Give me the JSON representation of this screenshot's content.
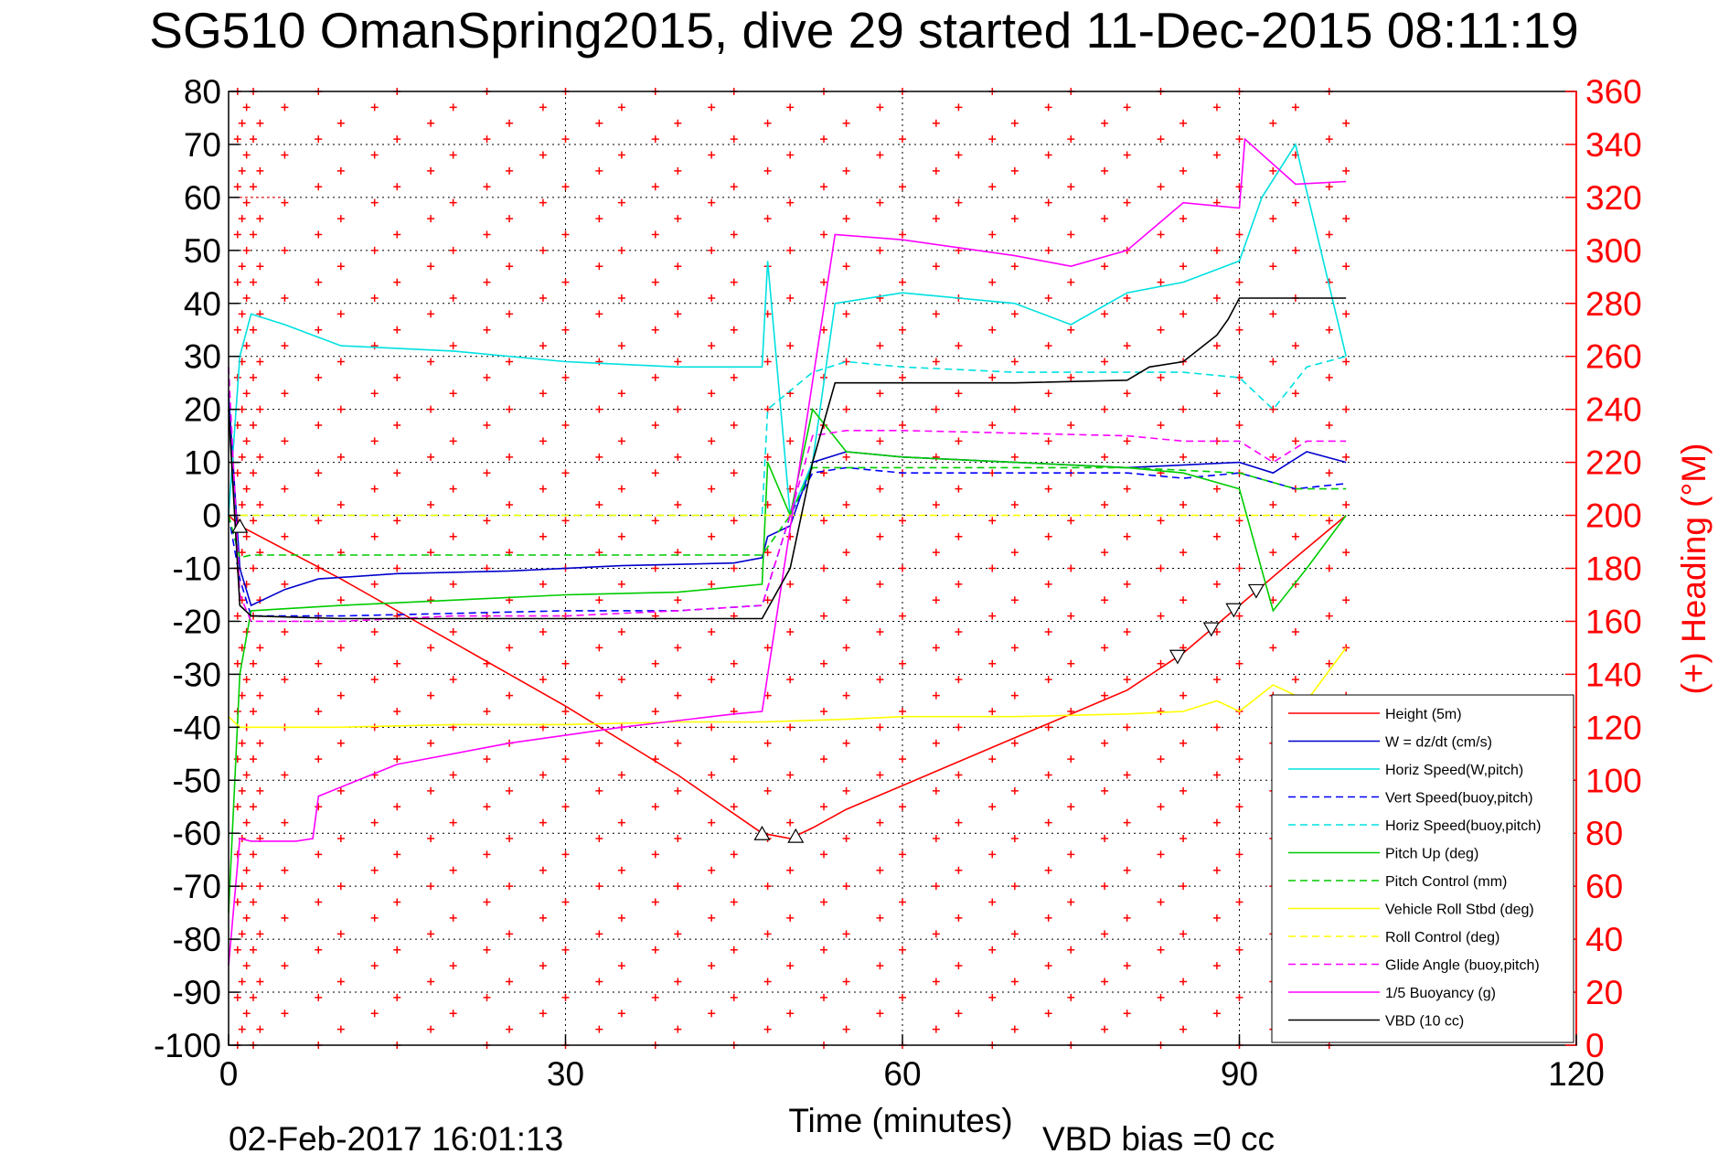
{
  "title": "SG510 OmanSpring2015, dive 29 started 11-Dec-2015 08:11:19",
  "footer": {
    "timestamp": "02-Feb-2017 16:01:13",
    "vbd_bias": "VBD bias =0 cc"
  },
  "colors": {
    "height": "#ff0000",
    "w": "#0000cc",
    "horiz_speed": "#00e0e0",
    "vert_speed_buoy": "#0000ff",
    "horiz_speed_buoy": "#00e0e0",
    "pitch_up": "#00cc00",
    "pitch_control": "#00cc00",
    "roll": "#ffff00",
    "roll_control": "#ffff00",
    "glide_angle": "#ff00ff",
    "buoyancy": "#ff00ff",
    "vbd": "#000000",
    "heading": "#ff0000"
  },
  "chart_data": {
    "type": "line",
    "xlabel": "Time (minutes)",
    "ylabel": "",
    "y2label": "(+) Heading (°M)",
    "xlim": [
      0,
      120
    ],
    "ylim": [
      -100,
      80
    ],
    "y2lim": [
      0,
      360
    ],
    "xticks": [
      "0",
      "30",
      "60",
      "90",
      "120"
    ],
    "yticks": [
      "80",
      "70",
      "60",
      "50",
      "40",
      "30",
      "20",
      "10",
      "0",
      "-10",
      "-20",
      "-30",
      "-40",
      "-50",
      "-60",
      "-70",
      "-80",
      "-90",
      "-100"
    ],
    "y2ticks": [
      "360",
      "340",
      "320",
      "300",
      "280",
      "260",
      "240",
      "220",
      "200",
      "180",
      "160",
      "140",
      "120",
      "100",
      "80",
      "60",
      "40",
      "20",
      "0"
    ],
    "grid": true,
    "legend_position": "bottom-right",
    "legend": [
      "Height (5m)",
      "W = dz/dt (cm/s)",
      "Horiz Speed(W,pitch)",
      "Vert Speed(buoy,pitch)",
      "Horiz Speed(buoy,pitch)",
      "Pitch Up (deg)",
      "Pitch Control (mm)",
      "Vehicle Roll Stbd (deg)",
      "Roll Control (deg)",
      "Glide Angle (buoy,pitch)",
      "1/5 Buoyancy (g)",
      "VBD (10 cc)"
    ],
    "series": [
      {
        "name": "Height (5m)",
        "style": "solid",
        "color_key": "height",
        "x": [
          0,
          1,
          10,
          20,
          30,
          40,
          47.5,
          50,
          52,
          55,
          60,
          70,
          80,
          85,
          90,
          95,
          99.5
        ],
        "y": [
          0,
          -2,
          -12,
          -24,
          -36,
          -49,
          -60,
          -61,
          -59,
          -55.5,
          -51,
          -42,
          -33,
          -26,
          -17,
          -8,
          0
        ]
      },
      {
        "name": "W = dz/dt (cm/s)",
        "style": "solid",
        "color_key": "w",
        "x": [
          0,
          1,
          2,
          5,
          8,
          15,
          25,
          35,
          45,
          47.5,
          48,
          50,
          52,
          55,
          60,
          70,
          80,
          90,
          93,
          96,
          99.5
        ],
        "y": [
          23,
          -10,
          -17,
          -14,
          -12,
          -11,
          -10.5,
          -9.5,
          -9,
          -8,
          -4,
          -2,
          10,
          12,
          11,
          10,
          9,
          10,
          8,
          12,
          10
        ]
      },
      {
        "name": "Horiz Speed(W,pitch)",
        "style": "solid",
        "color_key": "horiz_speed",
        "x": [
          0,
          1,
          2,
          5,
          10,
          20,
          30,
          40,
          47.5,
          48,
          50,
          52,
          54,
          60,
          70,
          75,
          80,
          85,
          90,
          92,
          95,
          99.5
        ],
        "y": [
          0,
          30,
          38,
          36,
          32,
          31,
          29,
          28,
          28,
          48,
          0,
          10,
          40,
          42,
          40,
          36,
          42,
          44,
          48,
          60,
          70,
          30
        ]
      },
      {
        "name": "Vert Speed(buoy,pitch)",
        "style": "dashed",
        "color_key": "vert_speed_buoy",
        "x": [
          0,
          1,
          2,
          10,
          20,
          30,
          40,
          47.5,
          50,
          52,
          55,
          60,
          70,
          80,
          85,
          90,
          95,
          99.5
        ],
        "y": [
          0,
          -12,
          -19,
          -19,
          -18.5,
          -18,
          -18,
          -17,
          0,
          8,
          9,
          8,
          8,
          8,
          7,
          8,
          5,
          6
        ]
      },
      {
        "name": "Horiz Speed(buoy,pitch)",
        "style": "dashed",
        "color_key": "horiz_speed_buoy",
        "x": [
          0,
          47.5,
          48,
          52,
          55,
          60,
          70,
          80,
          85,
          90,
          93,
          96,
          99.5
        ],
        "y": [
          0,
          0,
          20,
          27,
          29,
          28,
          27,
          27,
          27,
          26,
          20,
          28,
          30
        ]
      },
      {
        "name": "Pitch Up (deg)",
        "style": "solid",
        "color_key": "pitch_up",
        "x": [
          0,
          1,
          2,
          10,
          20,
          30,
          40,
          47.5,
          48,
          50,
          52,
          55,
          60,
          70,
          80,
          85,
          90,
          93,
          96,
          99.5
        ],
        "y": [
          -75,
          -30,
          -18,
          -17,
          -16,
          -15,
          -14.5,
          -13,
          10,
          0,
          20,
          12,
          11,
          10,
          9,
          8,
          5,
          -18,
          -10,
          0
        ]
      },
      {
        "name": "Pitch Control (mm)",
        "style": "dashed",
        "color_key": "pitch_control",
        "x": [
          0,
          1,
          2,
          20,
          40,
          47.5,
          50,
          52,
          55,
          60,
          80,
          90,
          95,
          99.5
        ],
        "y": [
          0,
          -8,
          -7.5,
          -7.5,
          -7.5,
          -7.5,
          0,
          9,
          9,
          9,
          9,
          8,
          5,
          5
        ]
      },
      {
        "name": "Vehicle Roll Stbd (deg)",
        "style": "solid",
        "color_key": "roll",
        "x": [
          0,
          1,
          5,
          10,
          20,
          30,
          40,
          47.5,
          55,
          60,
          70,
          80,
          85,
          88,
          90,
          93,
          96,
          99.5
        ],
        "y": [
          -38,
          -40,
          -40,
          -40,
          -39.5,
          -39.5,
          -39,
          -39,
          -38.5,
          -38,
          -38,
          -37.5,
          -37,
          -35,
          -37,
          -32,
          -35,
          -25
        ]
      },
      {
        "name": "Roll Control (deg)",
        "style": "dashed",
        "color_key": "roll_control",
        "x": [
          0,
          30,
          60,
          90,
          99.5
        ],
        "y": [
          0,
          0,
          0,
          0,
          0
        ]
      },
      {
        "name": "Glide Angle (buoy,pitch)",
        "style": "dashed",
        "color_key": "glide_angle",
        "x": [
          0,
          1,
          2,
          10,
          20,
          30,
          40,
          47.5,
          50,
          52,
          55,
          60,
          70,
          80,
          85,
          90,
          93,
          96,
          99.5
        ],
        "y": [
          28,
          -15,
          -20,
          -20,
          -19,
          -19,
          -18,
          -17,
          0,
          15,
          16,
          16,
          15.5,
          15,
          14,
          14,
          10,
          14,
          14
        ]
      },
      {
        "name": "1/5 Buoyancy (g)",
        "style": "solid",
        "color_key": "buoyancy",
        "x": [
          0,
          1,
          2,
          6,
          7.5,
          8,
          15,
          25,
          35,
          45,
          47.5,
          54,
          60,
          70,
          75,
          80,
          85,
          90,
          90.5,
          95,
          99.5
        ],
        "y": [
          -85,
          -61,
          -61.5,
          -61.5,
          -61,
          -53,
          -47,
          -43,
          -40,
          -37.5,
          -37,
          53,
          52,
          49,
          47,
          50,
          59,
          58,
          71,
          62.5,
          63
        ]
      },
      {
        "name": "VBD (10 cc)",
        "style": "solid",
        "color_key": "vbd",
        "x": [
          0,
          1,
          2,
          10,
          20,
          30,
          40,
          47.5,
          50,
          52,
          54,
          60,
          70,
          80,
          82,
          85,
          88,
          89,
          90,
          92,
          99.5
        ],
        "y": [
          20,
          -17,
          -19,
          -19.5,
          -19.5,
          -19.5,
          -19.5,
          -19.5,
          -10,
          10,
          25,
          25,
          25,
          25.5,
          28,
          29,
          34,
          37,
          41,
          41,
          41
        ]
      }
    ],
    "heading_columns_x": [
      0.8,
      1.2,
      1.6,
      2.2,
      2.8,
      5,
      8,
      10,
      13,
      15,
      18,
      20,
      23,
      25,
      28,
      30,
      33,
      35,
      38,
      40,
      43,
      45,
      48,
      50,
      53,
      55,
      58,
      60,
      63,
      65,
      68,
      70,
      73,
      75,
      78,
      80,
      83,
      85,
      88,
      90,
      93,
      95,
      98,
      99.5
    ],
    "heading_range": [
      0,
      360
    ],
    "heading_reference_line": 320,
    "turn_markers": {
      "up_triangles_x": [
        1,
        47.5,
        50.5
      ],
      "down_triangles_x": [
        84.5,
        87.5,
        89.5,
        91.5
      ]
    }
  }
}
